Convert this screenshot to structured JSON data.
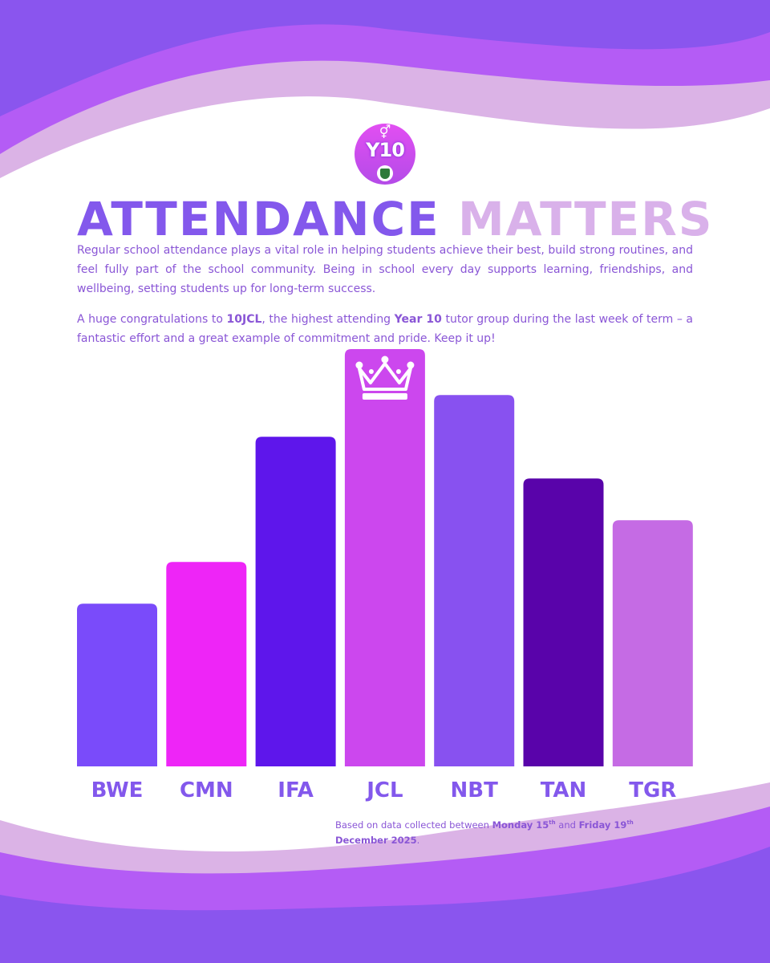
{
  "badge": {
    "label": "Y10",
    "gender_symbol": "⚥"
  },
  "title": {
    "part1": "ATTENDANCE",
    "part2": "MATTERS"
  },
  "intro": "Regular school attendance plays a vital role in helping students achieve their best, build strong routines, and feel fully part of the school community. Being in school every day supports learning, friendships, and wellbeing, setting students up for long-term success.",
  "congrats": {
    "lead": "A huge congratulations to",
    "group": "10JCL",
    "mid": ", the highest attending",
    "year": "Year 10",
    "tail": "tutor group during the last week of term – a fantastic effort and a great example of commitment and pride. Keep it up!"
  },
  "footnote": {
    "lead": "Based on data collected between",
    "start_day": "Monday 15",
    "start_sup": "th",
    "and": "and",
    "end_day": "Friday 19",
    "end_sup": "th",
    "end_month": "December 2025",
    "period": "."
  },
  "colors": {
    "wave_dark": "#8a55ee",
    "wave_mid": "#b45cf5",
    "wave_light": "#dbb3e6",
    "text": "#8a56d6",
    "label": "#8358ec"
  },
  "chart_data": {
    "type": "bar",
    "title": "",
    "xlabel": "",
    "ylabel": "",
    "categories": [
      "BWE",
      "CMN",
      "IFA",
      "JCL",
      "NBT",
      "TAN",
      "TGR"
    ],
    "values": [
      39,
      49,
      79,
      100,
      89,
      69,
      59
    ],
    "ylim": [
      0,
      100
    ],
    "bar_colors": [
      "#7a4bfa",
      "#ee25f7",
      "#5e16eb",
      "#cc47ee",
      "#8851f0",
      "#5903aa",
      "#c56be4"
    ],
    "highlight": "JCL",
    "highlight_icon": "crown-icon",
    "axes_visible": false,
    "grid": false
  }
}
